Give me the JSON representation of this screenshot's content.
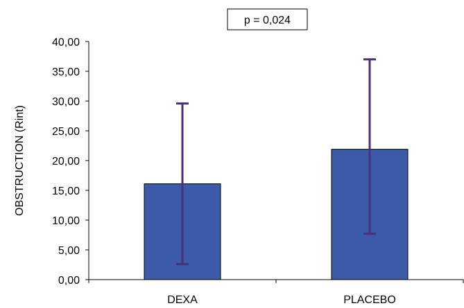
{
  "chart_data": {
    "type": "bar",
    "categories": [
      "DEXA",
      "PLACEBO"
    ],
    "values": [
      16.1,
      21.9
    ],
    "error_low": [
      2.6,
      7.7
    ],
    "error_high": [
      29.6,
      37.0
    ],
    "ylabel": "OBSTRUCTION (Rint)",
    "ylim": [
      0,
      40
    ],
    "yticks": [
      0,
      5,
      10,
      15,
      20,
      25,
      30,
      35,
      40
    ],
    "ytick_labels": [
      "0,00",
      "5,00",
      "10,00",
      "15,00",
      "20,00",
      "25,00",
      "30,00",
      "35,00",
      "40,00"
    ],
    "annotation": "p = 0,024",
    "grid": false,
    "legend": "none"
  },
  "colors": {
    "bar_fill": "#3b5ba8",
    "bar_stroke": "#000000",
    "error_bar": "#4a2f7f",
    "axis": "#000000"
  }
}
